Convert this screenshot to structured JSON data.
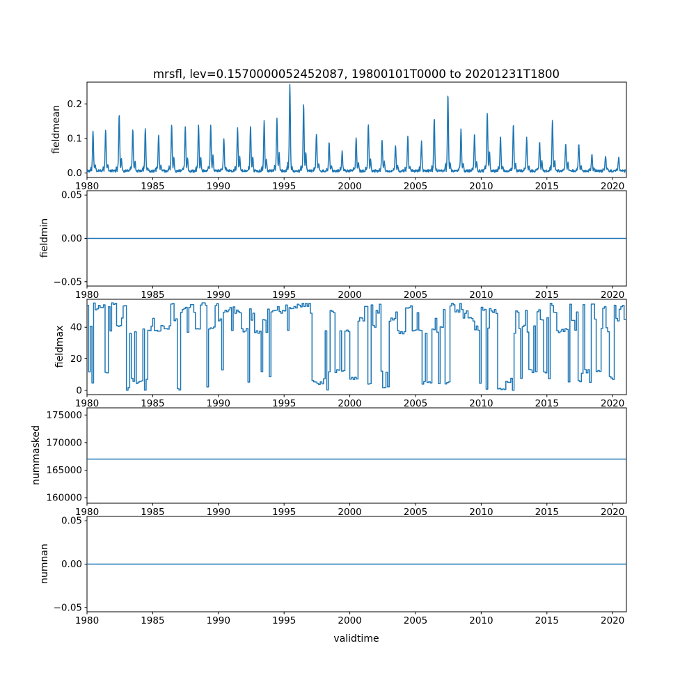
{
  "figure": {
    "title": "mrsfl, lev=0.1570000052452087, 19800101T0000 to 20201231T1800",
    "xlabel": "validtime",
    "line_color": "#1f77b4",
    "background": "#ffffff",
    "xlim": [
      1980,
      2021.05
    ],
    "xticks": [
      1980,
      1985,
      1990,
      1995,
      2000,
      2005,
      2010,
      2015,
      2020
    ],
    "xtick_labels": [
      "1980",
      "1985",
      "1990",
      "1995",
      "2000",
      "2005",
      "2010",
      "2015",
      "2020"
    ]
  },
  "chart_data": [
    {
      "type": "line",
      "ylabel": "fieldmean",
      "ylim": [
        -0.013,
        0.263
      ],
      "yticks": [
        0.0,
        0.1,
        0.2
      ],
      "ytick_labels": [
        "0.0",
        "0.1",
        "0.2"
      ],
      "grid": false,
      "series": {
        "name": "fieldmean",
        "kind": "seasonal",
        "start_year": 1980,
        "samples_per_year": 48,
        "base": 0.006,
        "spike_width": 0.055,
        "seed": 42,
        "annual_peaks": [
          0.115,
          0.12,
          0.165,
          0.12,
          0.125,
          0.105,
          0.13,
          0.13,
          0.135,
          0.13,
          0.095,
          0.125,
          0.13,
          0.145,
          0.15,
          0.25,
          0.195,
          0.11,
          0.085,
          0.055,
          0.095,
          0.135,
          0.09,
          0.075,
          0.1,
          0.085,
          0.155,
          0.22,
          0.12,
          0.105,
          0.17,
          0.1,
          0.135,
          0.095,
          0.085,
          0.145,
          0.08,
          0.08,
          0.05,
          0.045,
          0.04
        ]
      }
    },
    {
      "type": "line",
      "ylabel": "fieldmin",
      "ylim": [
        -0.055,
        0.055
      ],
      "yticks": [
        -0.05,
        0.0,
        0.05
      ],
      "ytick_labels": [
        "−0.05",
        "0.00",
        "0.05"
      ],
      "grid": false,
      "series": {
        "name": "fieldmin",
        "kind": "constant",
        "value": 0.0
      }
    },
    {
      "type": "line",
      "ylabel": "fieldmax",
      "ylim": [
        -2.75,
        57.75
      ],
      "yticks": [
        0,
        20,
        40
      ],
      "ytick_labels": [
        "0",
        "20",
        "40"
      ],
      "grid": false,
      "series": {
        "name": "fieldmax",
        "kind": "steps",
        "start_year": 1980,
        "years": 41,
        "segments_per_year": 8,
        "seed": 13,
        "change_prob": 0.6,
        "dip_prob": 0.2,
        "levels": [
          55,
          54,
          52,
          50,
          45,
          40,
          38,
          37
        ],
        "dip_levels": [
          12,
          8,
          5,
          1
        ],
        "value_range": [
          0,
          55.5
        ]
      }
    },
    {
      "type": "line",
      "ylabel": "nummasked",
      "ylim": [
        159000,
        176300
      ],
      "yticks": [
        160000,
        165000,
        170000,
        175000
      ],
      "ytick_labels": [
        "160000",
        "165000",
        "170000",
        "175000"
      ],
      "grid": false,
      "series": {
        "name": "nummasked",
        "kind": "constant",
        "value": 167000
      }
    },
    {
      "type": "line",
      "ylabel": "numnan",
      "ylim": [
        -0.055,
        0.055
      ],
      "yticks": [
        -0.05,
        0.0,
        0.05
      ],
      "ytick_labels": [
        "−0.05",
        "0.00",
        "0.05"
      ],
      "grid": false,
      "series": {
        "name": "numnan",
        "kind": "constant",
        "value": 0.0
      }
    }
  ]
}
